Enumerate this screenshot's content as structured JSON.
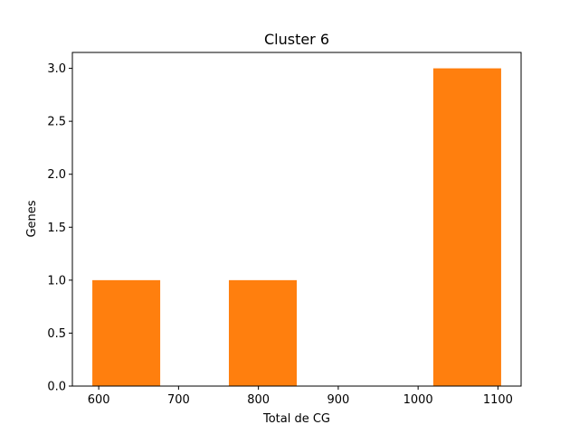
{
  "chart_data": {
    "type": "bar",
    "title": "Cluster 6",
    "xlabel": "Total de CG",
    "ylabel": "Genes",
    "bar_color": "#ff7f0e",
    "xlim": [
      567,
      1129
    ],
    "ylim": [
      0,
      3.15
    ],
    "xticks": [
      600,
      700,
      800,
      900,
      1000,
      1100
    ],
    "yticks": [
      0.0,
      0.5,
      1.0,
      1.5,
      2.0,
      2.5,
      3.0
    ],
    "ytick_labels": [
      "0.0",
      "0.5",
      "1.0",
      "1.5",
      "2.0",
      "2.5",
      "3.0"
    ],
    "bins": [
      {
        "start": 592,
        "end": 677,
        "value": 1
      },
      {
        "start": 763,
        "end": 848,
        "value": 1
      },
      {
        "start": 1019,
        "end": 1104,
        "value": 3
      }
    ],
    "grid": false
  }
}
